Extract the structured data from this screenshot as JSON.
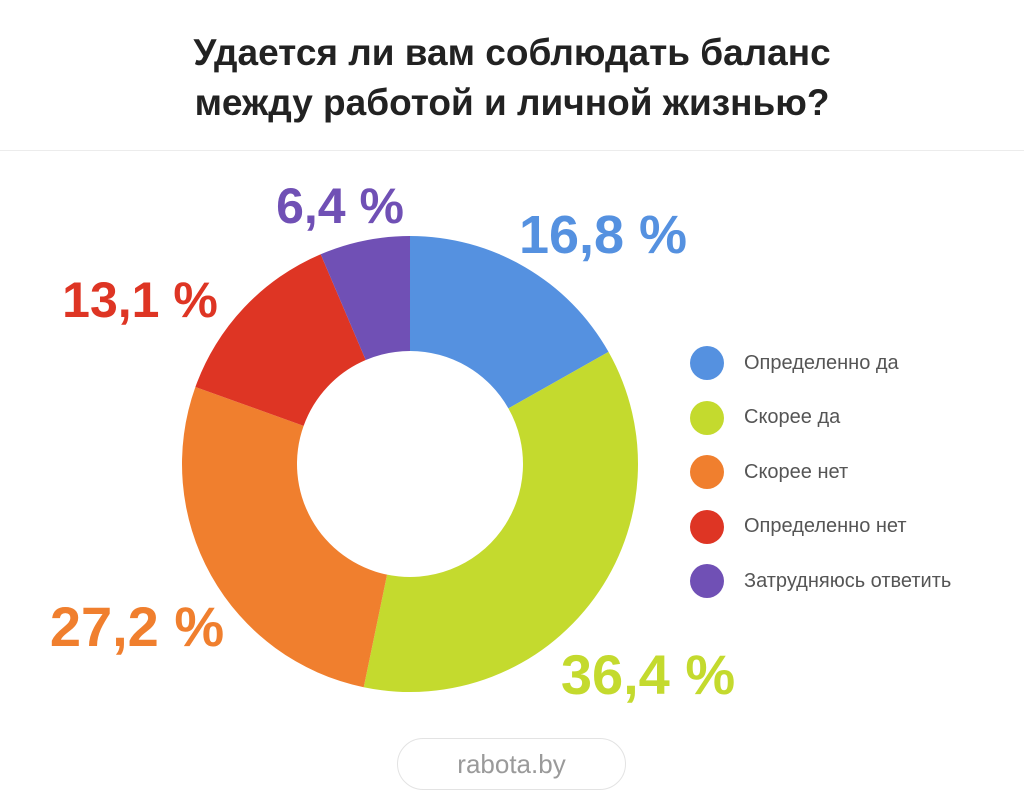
{
  "title_line1": "Удается ли вам соблюдать баланс",
  "title_line2": "между работой и личной жизнью?",
  "source": "rabota.by",
  "chart_data": {
    "type": "pie",
    "subtype": "donut",
    "title": "Удается ли вам соблюдать баланс между работой и личной жизнью?",
    "legend_position": "right",
    "slices": [
      {
        "label": "Определенно да",
        "value": 16.8,
        "display": "16,8 %",
        "color": "#5591e0"
      },
      {
        "label": "Скорее да",
        "value": 36.4,
        "display": "36,4 %",
        "color": "#c4da2e"
      },
      {
        "label": "Скорее нет",
        "value": 27.2,
        "display": "27,2 %",
        "color": "#f07f2e"
      },
      {
        "label": "Определенно нет",
        "value": 13.1,
        "display": "13,1 %",
        "color": "#de3524"
      },
      {
        "label": "Затрудняюсь ответить",
        "value": 6.4,
        "display": "6,4 %",
        "color": "#7050b5"
      }
    ]
  }
}
